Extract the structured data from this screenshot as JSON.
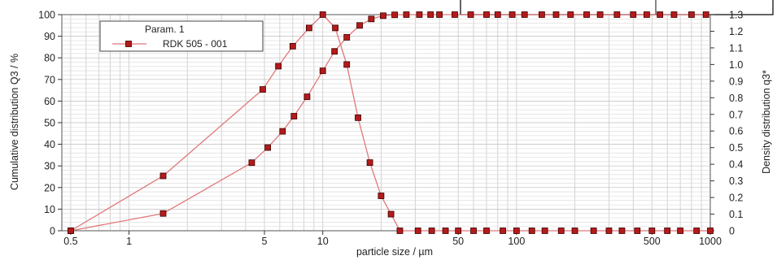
{
  "chart_data": {
    "type": "line",
    "xlabel": "particle size / µm",
    "ylabel_left": "Cumulative distribution Q3 / %",
    "ylabel_right": "Density distribution q3*",
    "x_scale": "log",
    "xlim": [
      0.45,
      1000
    ],
    "ylim_left": [
      0,
      100
    ],
    "ylim_right": [
      0,
      1.3
    ],
    "x_ticks": [
      0.5,
      1,
      5,
      10,
      50,
      100,
      500,
      1000
    ],
    "x_tick_labels": [
      "0.5",
      "1",
      "5",
      "10",
      "50",
      "100",
      "500",
      "1000"
    ],
    "y_ticks_left": [
      0,
      10,
      20,
      30,
      40,
      50,
      60,
      70,
      80,
      90,
      100
    ],
    "y_ticks_right": [
      "0",
      "0.1",
      "0.2",
      "0.3",
      "0.4",
      "0.5",
      "0.6",
      "0.7",
      "0.8",
      "0.9",
      "1.0",
      "1.1",
      "1.2",
      "1.3"
    ],
    "grid": true,
    "legend": {
      "title": "Param. 1",
      "entries": [
        "RDK 505 - 001"
      ],
      "position": "top-left"
    },
    "colors": {
      "line": "#e0787a",
      "marker": "#b51a1a",
      "marker_edge": "#3a0000"
    },
    "series": [
      {
        "name": "RDK 505 - 001",
        "kind": "cumulative",
        "axis": "left",
        "x": [
          0.5,
          1.5,
          4.3,
          5.2,
          6.2,
          7.1,
          8.3,
          10.0,
          11.5,
          13.3,
          15.5,
          17.8,
          20.5,
          23.5,
          27.0,
          31.5,
          36.0,
          40.0,
          48.0,
          58.0,
          70.0,
          80.0,
          95.0,
          110.0,
          135.0,
          160.0,
          190.0,
          230.0,
          270.0,
          330.0,
          400.0,
          470.0,
          550.0,
          650.0,
          800.0,
          950.0
        ],
        "y": [
          0,
          8,
          31.5,
          38.5,
          46,
          53,
          62,
          74,
          83,
          89.5,
          95,
          98,
          99.5,
          99.9,
          100,
          100,
          100,
          100,
          100,
          100,
          100,
          100,
          100,
          100,
          100,
          100,
          100,
          100,
          100,
          100,
          100,
          100,
          100,
          100,
          100,
          100
        ]
      },
      {
        "name": "RDK 505 - 001",
        "kind": "density",
        "axis": "right",
        "x": [
          0.5,
          1.5,
          4.9,
          5.9,
          7.0,
          8.5,
          10.0,
          11.6,
          13.3,
          15.2,
          17.5,
          20.0,
          22.5,
          25.0,
          31.0,
          36.5,
          43.0,
          50.0,
          60.0,
          70.0,
          85.0,
          100.0,
          120.0,
          140.0,
          170.0,
          200.0,
          250.0,
          300.0,
          350.0,
          420.0,
          500.0,
          600.0,
          700.0,
          850.0,
          1000.0
        ],
        "y": [
          0,
          0.33,
          0.85,
          0.99,
          1.11,
          1.22,
          1.3,
          1.22,
          1.0,
          0.68,
          0.41,
          0.21,
          0.1,
          0.0,
          0,
          0,
          0,
          0,
          0,
          0,
          0,
          0,
          0,
          0,
          0,
          0,
          0,
          0,
          0,
          0,
          0,
          0,
          0,
          0,
          0
        ]
      }
    ]
  }
}
